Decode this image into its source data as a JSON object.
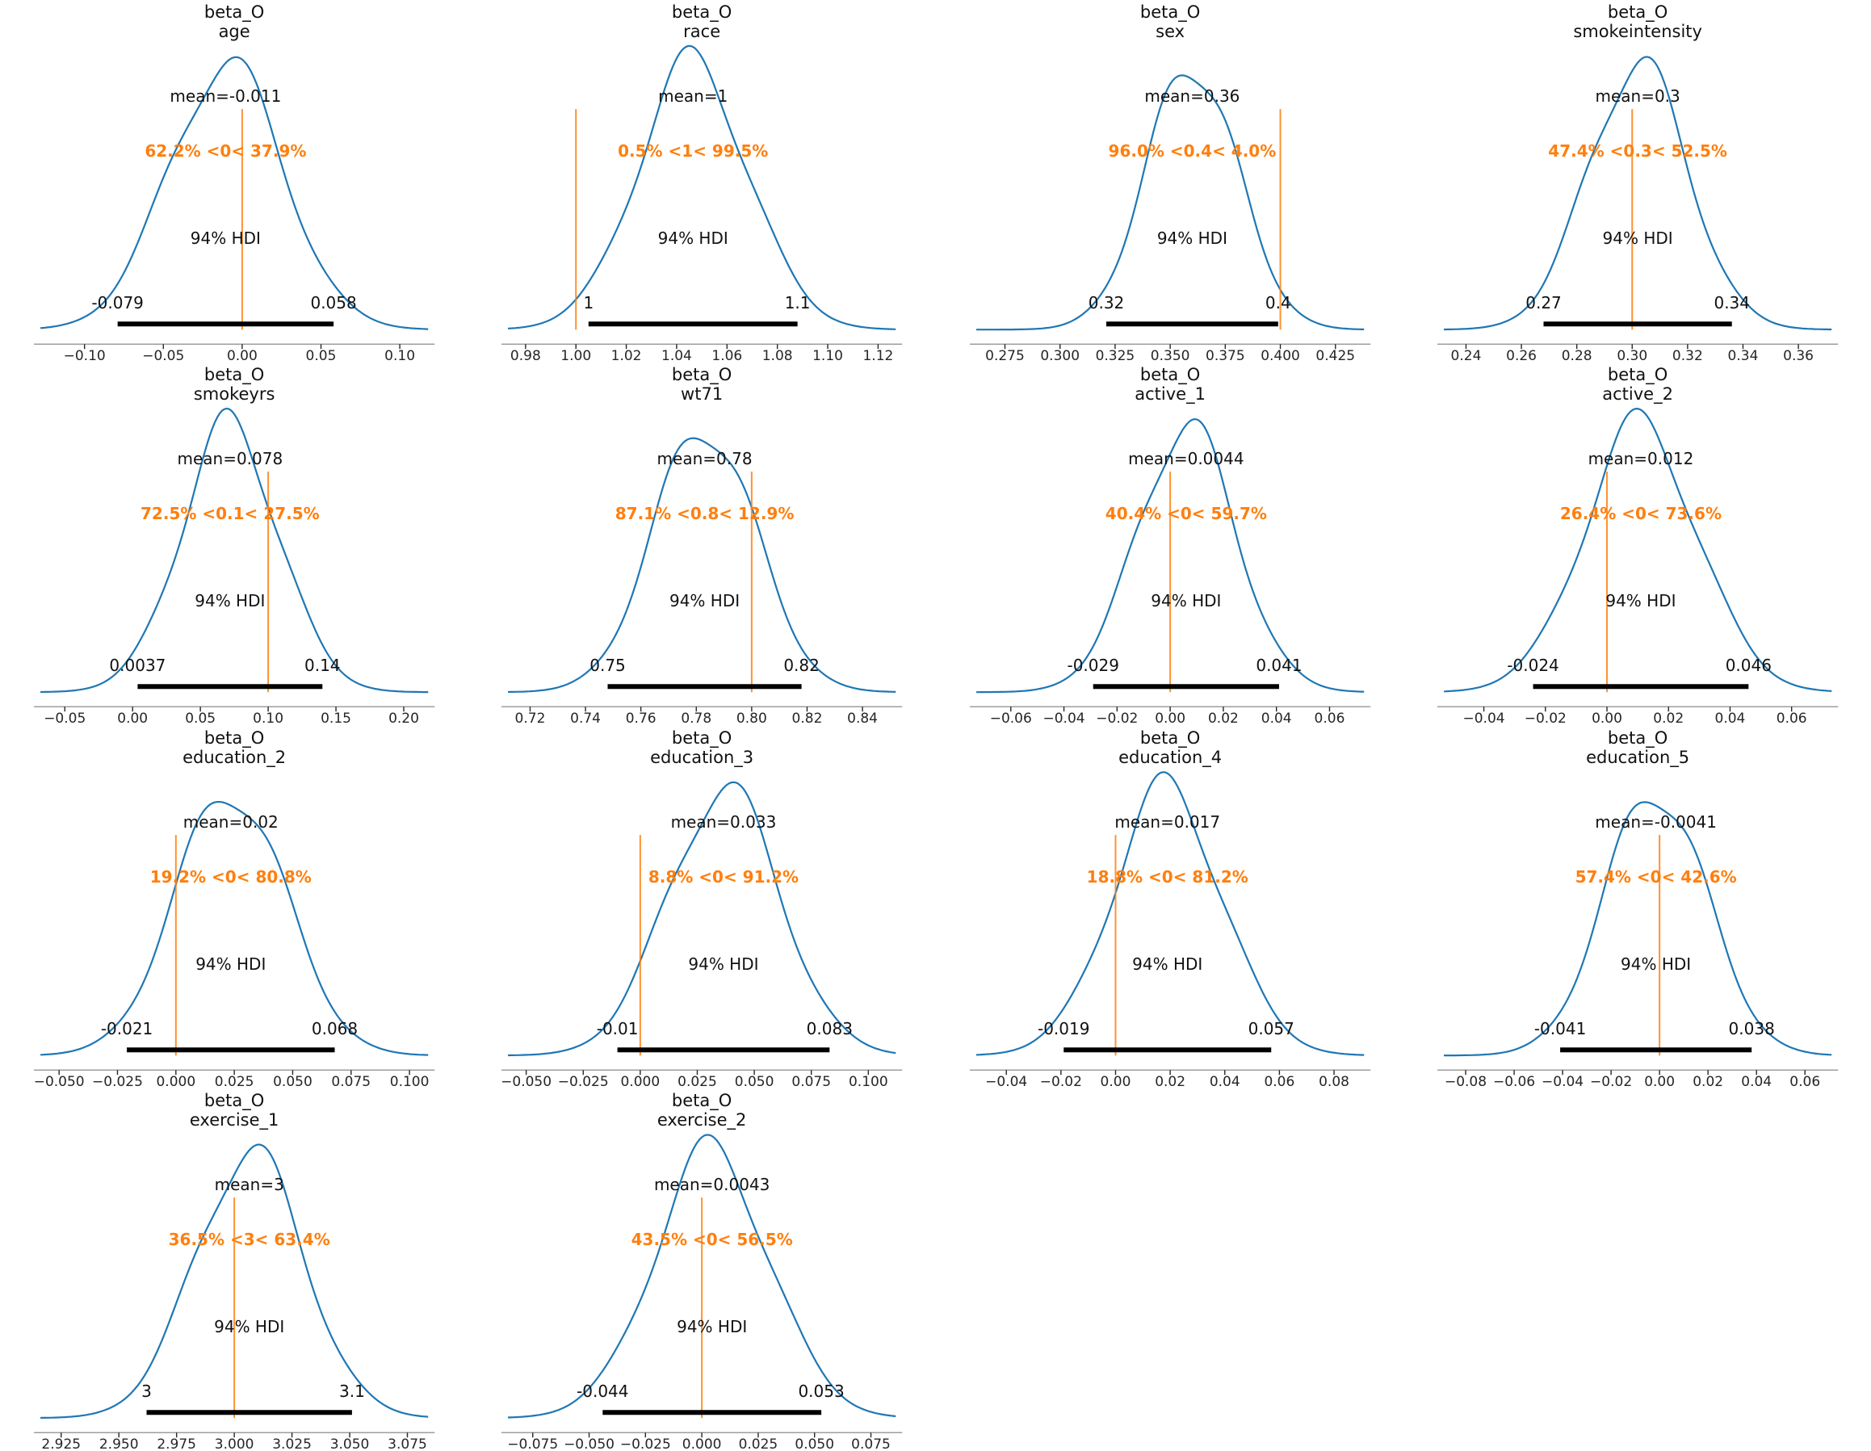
{
  "figure": {
    "background": "#ffffff",
    "curve_color": "#1f77b4",
    "ref_color": "#ff7f0e",
    "hdi_bar_color": "#000000",
    "axis_color": "#9e9e9e",
    "text_color": "#111111",
    "tick_color": "#262626",
    "hdi_text": "94% HDI"
  },
  "chart_data": [
    {
      "type": "line",
      "var_name": "age",
      "title_line1": "beta_O",
      "title_line2": "age",
      "mean_label": "mean=-0.011",
      "ref_label": "62.2% <0< 37.9%",
      "ref_value": 0,
      "hdi": {
        "low": -0.079,
        "high": 0.058,
        "low_label": "-0.079",
        "high_label": "0.058"
      },
      "xlim": [
        -0.128,
        0.118
      ],
      "xticks": [
        -0.1,
        -0.05,
        0.0,
        0.05,
        0.1
      ],
      "xtick_labels": [
        "−0.10",
        "−0.05",
        "0.00",
        "0.05",
        "0.10"
      ]
    },
    {
      "type": "line",
      "var_name": "race",
      "title_line1": "beta_O",
      "title_line2": "race",
      "mean_label": "mean=1",
      "ref_label": "0.5% <1< 99.5%",
      "ref_value": 1.0,
      "hdi": {
        "low": 1.005,
        "high": 1.088,
        "low_label": "1",
        "high_label": "1.1"
      },
      "xlim": [
        0.973,
        1.127
      ],
      "xticks": [
        0.98,
        1.0,
        1.02,
        1.04,
        1.06,
        1.08,
        1.1,
        1.12
      ],
      "xtick_labels": [
        "0.98",
        "1.00",
        "1.02",
        "1.04",
        "1.06",
        "1.08",
        "1.10",
        "1.12"
      ]
    },
    {
      "type": "line",
      "var_name": "sex",
      "title_line1": "beta_O",
      "title_line2": "sex",
      "mean_label": "mean=0.36",
      "ref_label": "96.0% <0.4< 4.0%",
      "ref_value": 0.4,
      "hdi": {
        "low": 0.321,
        "high": 0.399,
        "low_label": "0.32",
        "high_label": "0.4"
      },
      "xlim": [
        0.262,
        0.438
      ],
      "xticks": [
        0.275,
        0.3,
        0.325,
        0.35,
        0.375,
        0.4,
        0.425
      ],
      "xtick_labels": [
        "0.275",
        "0.300",
        "0.325",
        "0.350",
        "0.375",
        "0.400",
        "0.425"
      ]
    },
    {
      "type": "line",
      "var_name": "smokeintensity",
      "title_line1": "beta_O",
      "title_line2": "smokeintensity",
      "mean_label": "mean=0.3",
      "ref_label": "47.4% <0.3< 52.5%",
      "ref_value": 0.3,
      "hdi": {
        "low": 0.268,
        "high": 0.336,
        "low_label": "0.27",
        "high_label": "0.34"
      },
      "xlim": [
        0.232,
        0.372
      ],
      "xticks": [
        0.24,
        0.26,
        0.28,
        0.3,
        0.32,
        0.34,
        0.36
      ],
      "xtick_labels": [
        "0.24",
        "0.26",
        "0.28",
        "0.30",
        "0.32",
        "0.34",
        "0.36"
      ]
    },
    {
      "type": "line",
      "var_name": "smokeyrs",
      "title_line1": "beta_O",
      "title_line2": "smokeyrs",
      "mean_label": "mean=0.078",
      "ref_label": "72.5% <0.1< 27.5%",
      "ref_value": 0.1,
      "hdi": {
        "low": 0.0037,
        "high": 0.14,
        "low_label": "0.0037",
        "high_label": "0.14"
      },
      "xlim": [
        -0.068,
        0.218
      ],
      "xticks": [
        -0.05,
        0.0,
        0.05,
        0.1,
        0.15,
        0.2
      ],
      "xtick_labels": [
        "−0.05",
        "0.00",
        "0.05",
        "0.10",
        "0.15",
        "0.20"
      ]
    },
    {
      "type": "line",
      "var_name": "wt71",
      "title_line1": "beta_O",
      "title_line2": "wt71",
      "mean_label": "mean=0.78",
      "ref_label": "87.1% <0.8< 12.9%",
      "ref_value": 0.8,
      "hdi": {
        "low": 0.748,
        "high": 0.818,
        "low_label": "0.75",
        "high_label": "0.82"
      },
      "xlim": [
        0.712,
        0.852
      ],
      "xticks": [
        0.72,
        0.74,
        0.76,
        0.78,
        0.8,
        0.82,
        0.84
      ],
      "xtick_labels": [
        "0.72",
        "0.74",
        "0.76",
        "0.78",
        "0.80",
        "0.82",
        "0.84"
      ]
    },
    {
      "type": "line",
      "var_name": "active_1",
      "title_line1": "beta_O",
      "title_line2": "active_1",
      "mean_label": "mean=0.0044",
      "ref_label": "40.4% <0< 59.7%",
      "ref_value": 0,
      "hdi": {
        "low": -0.029,
        "high": 0.041,
        "low_label": "-0.029",
        "high_label": "0.041"
      },
      "xlim": [
        -0.073,
        0.073
      ],
      "xticks": [
        -0.06,
        -0.04,
        -0.02,
        0.0,
        0.02,
        0.04,
        0.06
      ],
      "xtick_labels": [
        "−0.06",
        "−0.04",
        "−0.02",
        "0.00",
        "0.02",
        "0.04",
        "0.06"
      ]
    },
    {
      "type": "line",
      "var_name": "active_2",
      "title_line1": "beta_O",
      "title_line2": "active_2",
      "mean_label": "mean=0.012",
      "ref_label": "26.4% <0< 73.6%",
      "ref_value": 0,
      "hdi": {
        "low": -0.024,
        "high": 0.046,
        "low_label": "-0.024",
        "high_label": "0.046"
      },
      "xlim": [
        -0.053,
        0.073
      ],
      "xticks": [
        -0.04,
        -0.02,
        0.0,
        0.02,
        0.04,
        0.06
      ],
      "xtick_labels": [
        "−0.04",
        "−0.02",
        "0.00",
        "0.02",
        "0.04",
        "0.06"
      ]
    },
    {
      "type": "line",
      "var_name": "education_2",
      "title_line1": "beta_O",
      "title_line2": "education_2",
      "mean_label": "mean=0.02",
      "ref_label": "19.2% <0< 80.8%",
      "ref_value": 0,
      "hdi": {
        "low": -0.021,
        "high": 0.068,
        "low_label": "-0.021",
        "high_label": "0.068"
      },
      "xlim": [
        -0.058,
        0.108
      ],
      "xticks": [
        -0.05,
        -0.025,
        0.0,
        0.025,
        0.05,
        0.075,
        0.1
      ],
      "xtick_labels": [
        "−0.050",
        "−0.025",
        "0.000",
        "0.025",
        "0.050",
        "0.075",
        "0.100"
      ]
    },
    {
      "type": "line",
      "var_name": "education_3",
      "title_line1": "beta_O",
      "title_line2": "education_3",
      "mean_label": "mean=0.033",
      "ref_label": "8.8% <0< 91.2%",
      "ref_value": 0,
      "hdi": {
        "low": -0.01,
        "high": 0.083,
        "low_label": "-0.01",
        "high_label": "0.083"
      },
      "xlim": [
        -0.058,
        0.112
      ],
      "xticks": [
        -0.05,
        -0.025,
        0.0,
        0.025,
        0.05,
        0.075,
        0.1
      ],
      "xtick_labels": [
        "−0.050",
        "−0.025",
        "0.000",
        "0.025",
        "0.050",
        "0.075",
        "0.100"
      ]
    },
    {
      "type": "line",
      "var_name": "education_4",
      "title_line1": "beta_O",
      "title_line2": "education_4",
      "mean_label": "mean=0.017",
      "ref_label": "18.8% <0< 81.2%",
      "ref_value": 0,
      "hdi": {
        "low": -0.019,
        "high": 0.057,
        "low_label": "-0.019",
        "high_label": "0.057"
      },
      "xlim": [
        -0.051,
        0.091
      ],
      "xticks": [
        -0.04,
        -0.02,
        0.0,
        0.02,
        0.04,
        0.06,
        0.08
      ],
      "xtick_labels": [
        "−0.04",
        "−0.02",
        "0.00",
        "0.02",
        "0.04",
        "0.06",
        "0.08"
      ]
    },
    {
      "type": "line",
      "var_name": "education_5",
      "title_line1": "beta_O",
      "title_line2": "education_5",
      "mean_label": "mean=-0.0041",
      "ref_label": "57.4% <0< 42.6%",
      "ref_value": 0,
      "hdi": {
        "low": -0.041,
        "high": 0.038,
        "low_label": "-0.041",
        "high_label": "0.038"
      },
      "xlim": [
        -0.089,
        0.071
      ],
      "xticks": [
        -0.08,
        -0.06,
        -0.04,
        -0.02,
        0.0,
        0.02,
        0.04,
        0.06
      ],
      "xtick_labels": [
        "−0.08",
        "−0.06",
        "−0.04",
        "−0.02",
        "0.00",
        "0.02",
        "0.04",
        "0.06"
      ]
    },
    {
      "type": "line",
      "var_name": "exercise_1",
      "title_line1": "beta_O",
      "title_line2": "exercise_1",
      "mean_label": "mean=3",
      "ref_label": "36.5% <3< 63.4%",
      "ref_value": 3.0,
      "hdi": {
        "low": 2.962,
        "high": 3.051,
        "low_label": "3",
        "high_label": "3.1"
      },
      "xlim": [
        2.916,
        3.084
      ],
      "xticks": [
        2.925,
        2.95,
        2.975,
        3.0,
        3.025,
        3.05,
        3.075
      ],
      "xtick_labels": [
        "2.925",
        "2.950",
        "2.975",
        "3.000",
        "3.025",
        "3.050",
        "3.075"
      ]
    },
    {
      "type": "line",
      "var_name": "exercise_2",
      "title_line1": "beta_O",
      "title_line2": "exercise_2",
      "mean_label": "mean=0.0043",
      "ref_label": "43.5% <0< 56.5%",
      "ref_value": 0,
      "hdi": {
        "low": -0.044,
        "high": 0.053,
        "low_label": "-0.044",
        "high_label": "0.053"
      },
      "xlim": [
        -0.086,
        0.086
      ],
      "xticks": [
        -0.075,
        -0.05,
        -0.025,
        0.0,
        0.025,
        0.05,
        0.075
      ],
      "xtick_labels": [
        "−0.075",
        "−0.050",
        "−0.025",
        "0.000",
        "0.025",
        "0.050",
        "0.075"
      ]
    }
  ]
}
